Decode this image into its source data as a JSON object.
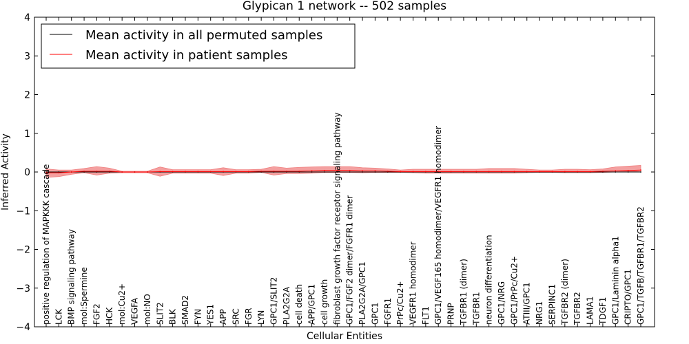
{
  "chart_data": {
    "type": "line",
    "title": "Glypican 1 network -- 502 samples",
    "xlabel": "Cellular Entities",
    "ylabel": "Inferred Activity",
    "ylim": [
      -4,
      4
    ],
    "yticks": [
      -4,
      -3,
      -2,
      -1,
      0,
      1,
      2,
      3,
      4
    ],
    "grid": false,
    "legend_position": "top-left",
    "categories": [
      "positive regulation of MAPKKK cascade",
      "LCK",
      "BMP signaling pathway",
      "mol:Spermine",
      "FGF2",
      "HCK",
      "mol:Cu2+",
      "VEGFA",
      "mol:NO",
      "SLIT2",
      "BLK",
      "SMAD2",
      "FYN",
      "YES1",
      "APP",
      "SRC",
      "FGR",
      "LYN",
      "GPC1/SLIT2",
      "PLA2G2A",
      "cell death",
      "APP/GPC1",
      "cell growth",
      "fibroblast growth factor receptor signaling pathway",
      "GPC1/FGF2 dimer/FGFR1 dimer",
      "PLA2G2A/GPC1",
      "GPC1",
      "FGFR1",
      "PrPc/Cu2+",
      "VEGFR1 homodimer",
      "FLT1",
      "GPC1/VEGF165 homodimer/VEGFR1 homodimer",
      "PRNP",
      "TGFBR1 (dimer)",
      "TGFBR1",
      "neuron differentiation",
      "GPC1/NRG",
      "GPC1/PrPc/Cu2+",
      "ATIII/GPC1",
      "NRG1",
      "SERPINC1",
      "TGFBR2 (dimer)",
      "TGFBR2",
      "LAMA1",
      "TDGF1",
      "GPC1/Laminin alpha1",
      "CRIPTO/GPC1",
      "GPC1/TGFB/TGFBR1/TGFBR2"
    ],
    "series": [
      {
        "name": "Mean activity in all permuted samples",
        "color": "#000000",
        "values": [
          0,
          0,
          0,
          0,
          0,
          0,
          0,
          0,
          0,
          0,
          0,
          0,
          0,
          0,
          0,
          0,
          0,
          0,
          0,
          0,
          0,
          0,
          0,
          0,
          0,
          0,
          0,
          0,
          0,
          0,
          0,
          0,
          0,
          0,
          0,
          0,
          0,
          0,
          0,
          0,
          0,
          0,
          0,
          0,
          0,
          0,
          0,
          0
        ]
      },
      {
        "name": "Mean activity in patient samples",
        "color": "#ff0000",
        "values": [
          -0.02,
          -0.02,
          0.0,
          0.02,
          0.02,
          0.02,
          0.0,
          0.0,
          0.0,
          0.01,
          0.01,
          0.01,
          0.01,
          0.01,
          0.01,
          0.01,
          0.01,
          0.02,
          0.02,
          0.02,
          0.02,
          0.03,
          0.04,
          0.04,
          0.04,
          0.03,
          0.03,
          0.02,
          0.01,
          0.01,
          0.01,
          0.01,
          0.01,
          0.01,
          0.01,
          0.01,
          0.01,
          0.01,
          0.01,
          0.01,
          0.01,
          0.01,
          0.01,
          0.01,
          0.02,
          0.03,
          0.04,
          0.05
        ],
        "band_upper": [
          0.1,
          0.07,
          0.05,
          0.07,
          0.12,
          0.08,
          0.02,
          0.02,
          0.02,
          0.12,
          0.05,
          0.05,
          0.05,
          0.05,
          0.1,
          0.05,
          0.05,
          0.05,
          0.12,
          0.08,
          0.1,
          0.1,
          0.1,
          0.1,
          0.1,
          0.08,
          0.07,
          0.06,
          0.04,
          0.06,
          0.06,
          0.06,
          0.06,
          0.06,
          0.06,
          0.08,
          0.08,
          0.08,
          0.06,
          0.04,
          0.04,
          0.06,
          0.06,
          0.05,
          0.06,
          0.1,
          0.11,
          0.12
        ],
        "band_lower": [
          -0.12,
          -0.1,
          -0.06,
          -0.04,
          -0.1,
          -0.05,
          -0.02,
          -0.02,
          -0.02,
          -0.12,
          -0.04,
          -0.04,
          -0.04,
          -0.04,
          -0.1,
          -0.04,
          -0.04,
          -0.03,
          -0.1,
          -0.06,
          -0.06,
          -0.06,
          -0.05,
          -0.05,
          -0.05,
          -0.05,
          -0.04,
          -0.03,
          -0.02,
          -0.03,
          -0.04,
          -0.04,
          -0.04,
          -0.04,
          -0.04,
          -0.04,
          -0.04,
          -0.04,
          -0.03,
          -0.02,
          -0.02,
          -0.03,
          -0.03,
          -0.03,
          -0.03,
          -0.03,
          -0.03,
          -0.03
        ],
        "band_color": "#f08080"
      }
    ]
  }
}
